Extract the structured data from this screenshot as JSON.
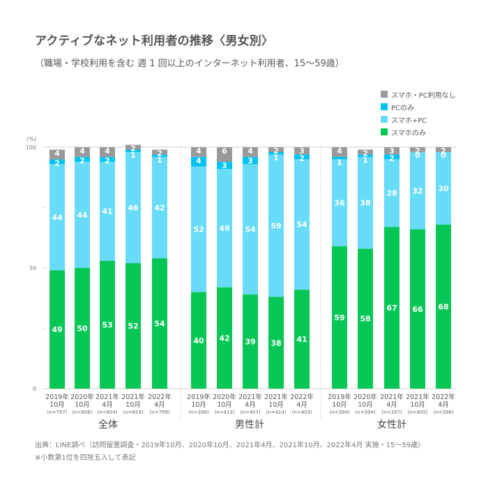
{
  "title": "アクティブなネット利用者の推移〈男女別〉",
  "subtitle": "（職場・学校利用を含む 週 1 回以上のインターネット利用者、15～59歳）",
  "footnotes": [
    "出典：LINE調べ（訪問留置調査・2019年10月、2020年10月、2021年4月、2021年10月、2022年4月 実施・15～59歳）",
    "※小数第1位を四捨五入して表記"
  ],
  "chart_data": {
    "type": "bar",
    "stacked": true,
    "title": "アクティブなネット利用者の推移〈男女別〉",
    "ylabel": "(%)",
    "ylim": [
      0,
      100
    ],
    "yticks": [
      0,
      50,
      100
    ],
    "legend_position": "top-right",
    "series": [
      {
        "name": "スマホのみ",
        "color": "#06c755",
        "values": [
          49,
          50,
          53,
          52,
          54,
          40,
          42,
          39,
          38,
          41,
          59,
          58,
          67,
          66,
          68
        ]
      },
      {
        "name": "スマホ+PC",
        "color": "#67dbf7",
        "values": [
          44,
          44,
          41,
          46,
          42,
          52,
          49,
          54,
          59,
          54,
          36,
          38,
          28,
          32,
          30
        ]
      },
      {
        "name": "PCのみ",
        "color": "#00c3f2",
        "values": [
          2,
          2,
          2,
          1,
          1,
          4,
          3,
          3,
          1,
          2,
          1,
          1,
          2,
          0,
          0
        ]
      },
      {
        "name": "スマホ・PC利用なし",
        "color": "#999999",
        "values": [
          4,
          4,
          4,
          2,
          2,
          4,
          6,
          4,
          2,
          3,
          4,
          2,
          3,
          2,
          2
        ]
      }
    ],
    "legend_order": [
      "スマホ・PC利用なし",
      "PCのみ",
      "スマホ+PC",
      "スマホのみ"
    ],
    "groups": [
      {
        "name": "全体",
        "categories": [
          {
            "year": "2019年",
            "month": "10月",
            "n": "(n=797)"
          },
          {
            "year": "2020年",
            "month": "10月",
            "n": "(n=806)"
          },
          {
            "year": "2021年",
            "month": "4月",
            "n": "(n=804)"
          },
          {
            "year": "2021年",
            "month": "10月",
            "n": "(n=819)"
          },
          {
            "year": "2022年",
            "month": "4月",
            "n": "(n=799)"
          }
        ]
      },
      {
        "name": "男性計",
        "categories": [
          {
            "year": "2019年",
            "month": "10月",
            "n": "(n=398)"
          },
          {
            "year": "2020年",
            "month": "10月",
            "n": "(n=412)"
          },
          {
            "year": "2021年",
            "month": "4月",
            "n": "(n=407)"
          },
          {
            "year": "2021年",
            "month": "10月",
            "n": "(n=414)"
          },
          {
            "year": "2022年",
            "month": "4月",
            "n": "(n=403)"
          }
        ]
      },
      {
        "name": "女性計",
        "categories": [
          {
            "year": "2019年",
            "month": "10月",
            "n": "(n=399)"
          },
          {
            "year": "2020年",
            "month": "10月",
            "n": "(n=394)"
          },
          {
            "year": "2021年",
            "month": "4月",
            "n": "(n=397)"
          },
          {
            "year": "2021年",
            "month": "10月",
            "n": "(n=405)"
          },
          {
            "year": "2022年",
            "month": "4月",
            "n": "(n=396)"
          }
        ]
      }
    ]
  }
}
